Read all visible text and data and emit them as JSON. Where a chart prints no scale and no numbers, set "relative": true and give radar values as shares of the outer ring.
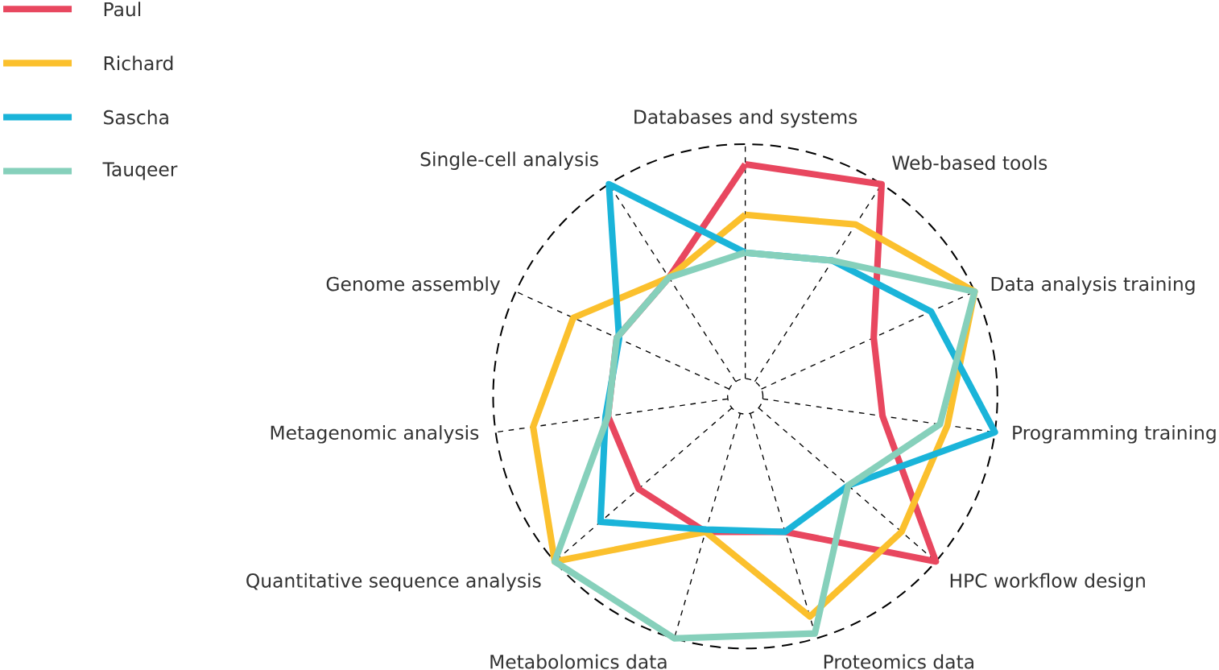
{
  "chart_data": {
    "type": "radar",
    "relative": true,
    "grid": true,
    "legend": "top left",
    "line_style": "solid",
    "categories": [
      "Databases and systems",
      "Web-based tools",
      "Data analysis training",
      "Programming training",
      "HPC workflow design",
      "Proteomics data",
      "Metabolomics data",
      "Quantitative sequence analysis",
      "Metagenomic analysis",
      "Genome assembly",
      "Single-cell analysis"
    ],
    "series": [
      {
        "name": "Paul",
        "color": "#e8475f",
        "values": [
          0.92,
          1.0,
          0.56,
          0.55,
          1.0,
          0.56,
          0.56,
          0.56,
          0.55,
          0.56,
          0.56
        ]
      },
      {
        "name": "Richard",
        "color": "#fbc02d",
        "values": [
          0.72,
          0.81,
          1.0,
          0.81,
          0.82,
          0.91,
          0.56,
          1.0,
          0.85,
          0.75,
          0.56
        ]
      },
      {
        "name": "Sascha",
        "color": "#1ab4d9",
        "values": [
          0.57,
          0.64,
          0.81,
          1.0,
          0.54,
          0.56,
          0.55,
          0.76,
          0.56,
          0.55,
          1.0
        ]
      },
      {
        "name": "Tauqeer",
        "color": "#86d0bb",
        "values": [
          0.57,
          0.64,
          1.0,
          0.78,
          0.54,
          0.98,
          1.0,
          1.0,
          0.55,
          0.56,
          0.56
        ]
      }
    ]
  }
}
